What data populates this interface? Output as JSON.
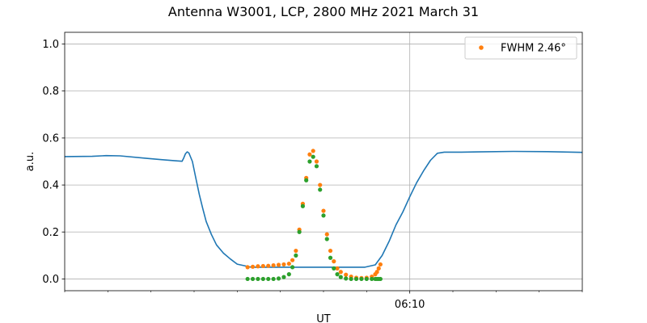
{
  "chart_data": {
    "type": "line",
    "title": "Antenna W3001, LCP, 2800 MHz 2021 March 31",
    "xlabel": "UT",
    "ylabel": "a.u.",
    "x_unit": "minutes",
    "xlim": [
      0,
      15
    ],
    "ylim": [
      -0.05,
      1.05
    ],
    "yticks": [
      0.0,
      0.2,
      0.4,
      0.6,
      0.8,
      1.0
    ],
    "ytick_labels": [
      "0.0",
      "0.2",
      "0.4",
      "0.6",
      "0.8",
      "1.0"
    ],
    "xticks": [
      10
    ],
    "xtick_labels": [
      "06:10"
    ],
    "xminor_ticks": [
      0,
      1.25,
      2.5,
      3.75,
      5,
      6.25,
      7.5,
      8.75,
      11.25,
      12.5,
      13.75,
      15
    ],
    "grid": true,
    "legend": {
      "placement": "top-right",
      "entries": [
        {
          "label": "FWHM 2.46$^\\circ$",
          "text": "FWHM 2.46°",
          "color": "#ff7f0e"
        }
      ]
    },
    "series": [
      {
        "kind": "line",
        "color": "#1f77b4",
        "x": [
          0,
          0.8,
          1.2,
          1.6,
          2.4,
          2.8,
          3.2,
          3.4,
          3.45,
          3.5,
          3.55,
          3.6,
          3.7,
          3.8,
          3.9,
          4.0,
          4.1,
          4.25,
          4.4,
          4.6,
          4.8,
          5.0,
          5.4,
          5.7,
          6.0,
          6.3,
          6.6,
          6.9,
          7.2,
          7.5,
          7.8,
          8.1,
          8.4,
          8.7,
          9.0,
          9.2,
          9.4,
          9.6,
          9.8,
          10.0,
          10.2,
          10.4,
          10.6,
          10.8,
          11.0,
          11.5,
          12.0,
          13.0,
          14.0,
          15.0
        ],
        "y": [
          0.521,
          0.522,
          0.525,
          0.524,
          0.513,
          0.508,
          0.503,
          0.501,
          0.515,
          0.533,
          0.541,
          0.536,
          0.5,
          0.43,
          0.36,
          0.3,
          0.245,
          0.19,
          0.145,
          0.11,
          0.085,
          0.063,
          0.05,
          0.05,
          0.05,
          0.05,
          0.05,
          0.05,
          0.05,
          0.05,
          0.05,
          0.05,
          0.05,
          0.05,
          0.06,
          0.1,
          0.16,
          0.23,
          0.285,
          0.35,
          0.41,
          0.46,
          0.505,
          0.535,
          0.54,
          0.54,
          0.541,
          0.543,
          0.542,
          0.539
        ]
      },
      {
        "kind": "scatter",
        "name": "FWHM 2.46°",
        "color": "#ff7f0e",
        "x": [
          5.3,
          5.45,
          5.6,
          5.75,
          5.9,
          6.05,
          6.2,
          6.35,
          6.5,
          6.6,
          6.7,
          6.8,
          6.9,
          7.0,
          7.1,
          7.2,
          7.3,
          7.4,
          7.5,
          7.6,
          7.7,
          7.8,
          7.9,
          8.0,
          8.15,
          8.3,
          8.45,
          8.6,
          8.75,
          8.9,
          9.0,
          9.05,
          9.1,
          9.15
        ],
        "y": [
          0.05,
          0.052,
          0.054,
          0.055,
          0.056,
          0.058,
          0.06,
          0.062,
          0.065,
          0.08,
          0.12,
          0.21,
          0.32,
          0.43,
          0.53,
          0.545,
          0.5,
          0.4,
          0.29,
          0.19,
          0.12,
          0.075,
          0.045,
          0.03,
          0.018,
          0.01,
          0.005,
          0.004,
          0.005,
          0.01,
          0.02,
          0.03,
          0.045,
          0.062
        ]
      },
      {
        "kind": "scatter",
        "color": "#2ca02c",
        "x": [
          5.3,
          5.45,
          5.6,
          5.75,
          5.9,
          6.05,
          6.2,
          6.35,
          6.5,
          6.6,
          6.7,
          6.8,
          6.9,
          7.0,
          7.1,
          7.2,
          7.3,
          7.4,
          7.5,
          7.6,
          7.7,
          7.8,
          7.9,
          8.0,
          8.15,
          8.3,
          8.45,
          8.6,
          8.75,
          8.9,
          9.0,
          9.05,
          9.1,
          9.15
        ],
        "y": [
          0.0,
          0.0,
          0.0,
          0.0,
          0.0,
          0.0,
          0.002,
          0.008,
          0.02,
          0.05,
          0.1,
          0.2,
          0.31,
          0.42,
          0.5,
          0.52,
          0.48,
          0.38,
          0.27,
          0.17,
          0.09,
          0.045,
          0.02,
          0.008,
          0.002,
          0.0,
          0.0,
          0.0,
          0.0,
          0.0,
          0.0,
          0.0,
          0.0,
          0.0
        ]
      }
    ]
  }
}
